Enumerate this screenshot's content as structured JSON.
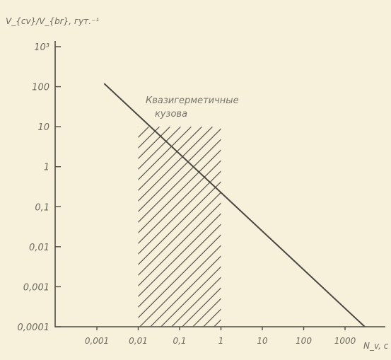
{
  "chart_data": {
    "type": "line",
    "ylabel": "V_{cv}/V_{br}, гут.⁻¹",
    "xlabel": "N_v, c",
    "x_scale": "log",
    "y_scale": "log",
    "xlim": [
      0.0001,
      10000
    ],
    "ylim": [
      0.0001,
      1000
    ],
    "x_ticks": [
      "0,001",
      "0,01",
      "0,1",
      "1",
      "10",
      "100",
      "1000"
    ],
    "x_tick_values": [
      0.001,
      0.01,
      0.1,
      1,
      10,
      100,
      1000
    ],
    "y_ticks": [
      "0,0001",
      "0,001",
      "0,01",
      "0,1",
      "1",
      "10",
      "100",
      "10³"
    ],
    "y_tick_values": [
      0.0001,
      0.001,
      0.01,
      0.1,
      1,
      10,
      100,
      1000
    ],
    "series": [
      {
        "x": [
          0.0015,
          3000
        ],
        "y": [
          120,
          0.0001
        ]
      }
    ],
    "region": {
      "x_range": [
        0.01,
        1
      ],
      "y_range": [
        0.0001,
        10
      ],
      "label_lines": [
        "Квазигерметичные",
        "кузова"
      ]
    },
    "grid": false,
    "colors": {
      "background": "#f7f1dc",
      "ink": "#4f4c43",
      "text": "#6e6a5e"
    }
  }
}
